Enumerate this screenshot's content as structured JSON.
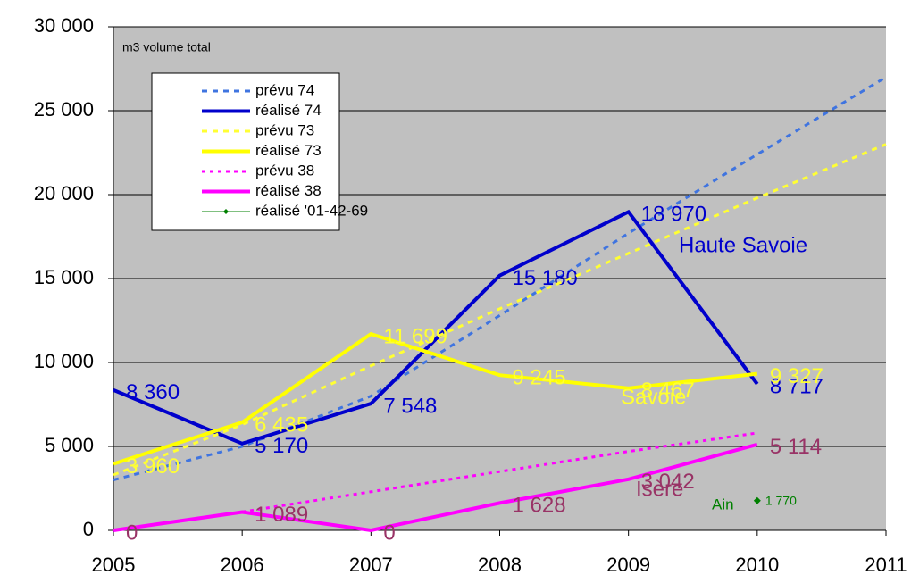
{
  "chart_data": {
    "type": "line",
    "x": [
      2005,
      2006,
      2007,
      2008,
      2009,
      2010,
      2011
    ],
    "xlim": [
      2005,
      2011
    ],
    "xticks": [
      2005,
      2006,
      2007,
      2008,
      2009,
      2010,
      2011
    ],
    "ylim": [
      0,
      30000
    ],
    "yticks": [
      {
        "value": 0,
        "label": "0"
      },
      {
        "value": 5000,
        "label": "5 000"
      },
      {
        "value": 10000,
        "label": "10 000"
      },
      {
        "value": 15000,
        "label": "15 000"
      },
      {
        "value": 20000,
        "label": "20 000"
      },
      {
        "value": 25000,
        "label": "25 000"
      },
      {
        "value": 30000,
        "label": "30 000"
      }
    ],
    "grid": true,
    "legend": "upper left",
    "series": [
      {
        "name": "prévu 74",
        "color": "#3f74e0",
        "style": "dashed",
        "values": [
          3000,
          5000,
          8000,
          12800,
          17700,
          22400,
          27000
        ]
      },
      {
        "name": "réalisé 74",
        "color": "#0000cc",
        "style": "solid",
        "label_color": "#0000cc",
        "values": [
          8360,
          5170,
          7548,
          15180,
          18970,
          8717,
          null
        ],
        "value_labels": [
          "8 360",
          "5 170",
          "7 548",
          "15 180",
          "18 970",
          "8 717",
          null
        ]
      },
      {
        "name": "prévu 73",
        "color": "#ffff33",
        "style": "dashed",
        "values": [
          3300,
          6300,
          9800,
          13200,
          16500,
          19800,
          23000
        ]
      },
      {
        "name": "réalisé 73",
        "color": "#ffff00",
        "style": "solid",
        "label_color": "#ffff33",
        "values": [
          3960,
          6435,
          11699,
          9245,
          8467,
          9327,
          null
        ],
        "value_labels": [
          "3 960",
          "6 435",
          "11 699",
          "9 245",
          "8 467",
          "9 327",
          null
        ]
      },
      {
        "name": "prévu 38",
        "color": "#ff00ff",
        "style": "dotted",
        "values": [
          null,
          1100,
          2300,
          3500,
          4700,
          5800,
          null
        ]
      },
      {
        "name": "réalisé 38",
        "color": "#ff00ff",
        "style": "solid",
        "label_color": "#993366",
        "values": [
          0,
          1089,
          0,
          1628,
          3042,
          5114,
          null
        ],
        "value_labels": [
          "0",
          "1 089",
          "0",
          "1 628",
          "3 042",
          "5 114",
          null
        ]
      },
      {
        "name": "réalisé '01-42-69",
        "color": "#008000",
        "style": "marker",
        "label_color": "#008000",
        "values": [
          null,
          null,
          null,
          null,
          null,
          1770,
          null
        ],
        "value_labels": [
          null,
          null,
          null,
          null,
          null,
          "1 770",
          null
        ]
      }
    ],
    "annotations": [
      {
        "text": "m3 volume total",
        "color": "#000000"
      },
      {
        "text": "Haute Savoie",
        "color": "#0000cc"
      },
      {
        "text": "Savoie",
        "color": "#ffff33"
      },
      {
        "text": "Isère",
        "color": "#993366"
      },
      {
        "text": "Ain",
        "color": "#008000"
      }
    ]
  }
}
